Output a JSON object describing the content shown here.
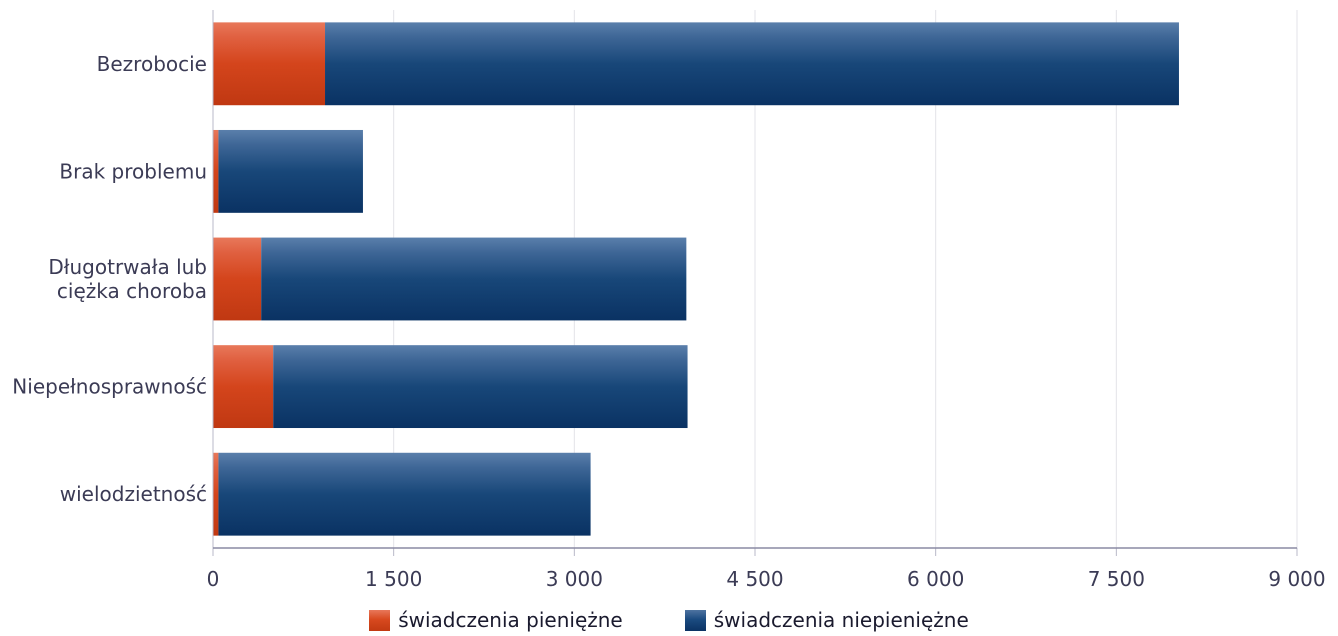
{
  "chart_data": {
    "type": "bar",
    "orientation": "horizontal",
    "stacked": true,
    "categories": [
      "Bezrobocie",
      "Brak problemu",
      "Długotrwała lub\nciężka choroba",
      "Niepełnosprawność",
      "wielodzietność"
    ],
    "series": [
      {
        "name": "świadczenia pieniężne",
        "color": "#d8491f",
        "values": [
          930,
          45,
          400,
          500,
          45
        ]
      },
      {
        "name": "świadczenia niepieniężne",
        "color": "#123f73",
        "values": [
          7090,
          1200,
          3530,
          3440,
          3090
        ]
      }
    ],
    "xticks": [
      "0",
      "1 500",
      "3 000",
      "4 500",
      "6 000",
      "7 500",
      "9 000"
    ],
    "xlim": [
      0,
      9000
    ],
    "grid": "vertical",
    "legend_position": "bottom"
  }
}
